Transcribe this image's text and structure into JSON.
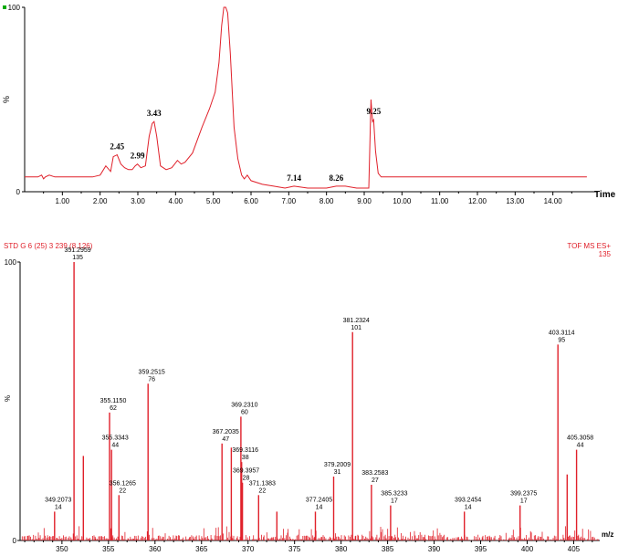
{
  "colors": {
    "trace": "#e0202a",
    "axis": "#000000",
    "background": "#ffffff"
  },
  "chart_data": [
    {
      "type": "line",
      "title": "",
      "xlabel": "Time",
      "ylabel": "%",
      "xlim": [
        0,
        15
      ],
      "ylim": [
        0,
        100
      ],
      "x_ticks": [
        1,
        2,
        3,
        4,
        5,
        6,
        7,
        8,
        9,
        10,
        11,
        12,
        13,
        14
      ],
      "x_tick_labels": [
        "1.00",
        "2.00",
        "3.00",
        "4.00",
        "5.00",
        "6.00",
        "7.00",
        "8.00",
        "9.00",
        "10.00",
        "11.00",
        "12.00",
        "13.00",
        "14.00"
      ],
      "y_ticks": [
        0,
        100
      ],
      "y_tick_labels": [
        "0",
        "100"
      ],
      "series": [
        {
          "x": [
            0,
            0.35,
            0.45,
            0.5,
            0.55,
            0.65,
            0.8,
            1.0,
            1.2,
            1.5,
            1.8,
            2.0,
            2.15,
            2.28,
            2.35,
            2.45,
            2.55,
            2.65,
            2.75,
            2.85,
            2.93,
            2.99,
            3.08,
            3.2,
            3.3,
            3.38,
            3.43,
            3.5,
            3.6,
            3.75,
            3.9,
            4.05,
            4.15,
            4.25,
            4.45,
            4.7,
            4.9,
            5.05,
            5.15,
            5.22,
            5.28,
            5.33,
            5.38,
            5.45,
            5.55,
            5.65,
            5.75,
            5.82,
            5.9,
            6.0,
            6.3,
            6.6,
            6.9,
            7.14,
            7.5,
            7.8,
            8.0,
            8.26,
            8.5,
            8.8,
            9.0,
            9.12,
            9.18,
            9.22,
            9.25,
            9.3,
            9.37,
            9.45,
            9.6,
            10,
            11,
            12,
            13,
            14,
            14.9
          ],
          "y": [
            8,
            8,
            9,
            7,
            8,
            9,
            8,
            8,
            8,
            8,
            8,
            9,
            14,
            11,
            19,
            20,
            15,
            13,
            12,
            12,
            14,
            15,
            13,
            14,
            30,
            37,
            38,
            30,
            14,
            12,
            13,
            17,
            15,
            16,
            21,
            35,
            45,
            54,
            70,
            90,
            100,
            100,
            97,
            75,
            35,
            18,
            9,
            7,
            9,
            6,
            4,
            3,
            2,
            3,
            2,
            2,
            2,
            3,
            3,
            2,
            2,
            2,
            50,
            38,
            39,
            22,
            10,
            8,
            8,
            8,
            8,
            8,
            8,
            8,
            8
          ]
        }
      ],
      "annotations": [
        {
          "x": 2.45,
          "y": 20,
          "text": "2.45"
        },
        {
          "x": 2.99,
          "y": 15,
          "text": "2.99"
        },
        {
          "x": 3.43,
          "y": 38,
          "text": "3.43"
        },
        {
          "x": 7.14,
          "y": 3,
          "text": "7.14"
        },
        {
          "x": 8.26,
          "y": 3,
          "text": "8.26"
        },
        {
          "x": 9.25,
          "y": 39,
          "text": "9.25"
        }
      ]
    },
    {
      "type": "bar",
      "title": "STD G 6 (25) 3 239 (8.126)",
      "subtitle": "TOF MS ES+",
      "scale_label": "135",
      "xlabel": "m/z",
      "ylabel": "%",
      "xlim": [
        345.5,
        407.8
      ],
      "ylim": [
        0,
        100
      ],
      "x_ticks": [
        350,
        355,
        360,
        365,
        370,
        375,
        380,
        385,
        390,
        395,
        400,
        405
      ],
      "x_tick_labels": [
        "350",
        "355",
        "360",
        "365",
        "370",
        "375",
        "380",
        "385",
        "390",
        "395",
        "400",
        "405"
      ],
      "y_ticks": [
        0,
        100
      ],
      "y_tick_labels": [
        "0",
        "100"
      ],
      "peaks": [
        {
          "mz": 349.2073,
          "intensity": 14,
          "mass": "349.2073",
          "count": "14",
          "labeled": true
        },
        {
          "mz": 351.2959,
          "intensity": 135,
          "mass": "351.2959",
          "count": "135",
          "labeled": true
        },
        {
          "mz": 352.3,
          "intensity": 41,
          "mass": "",
          "count": "",
          "labeled": false
        },
        {
          "mz": 355.115,
          "intensity": 62,
          "mass": "355.1150",
          "count": "62",
          "labeled": true
        },
        {
          "mz": 355.3343,
          "intensity": 44,
          "mass": "355.3343",
          "count": "44",
          "labeled": true
        },
        {
          "mz": 356.1265,
          "intensity": 22,
          "mass": "356.1265",
          "count": "22",
          "labeled": true
        },
        {
          "mz": 359.2515,
          "intensity": 76,
          "mass": "359.2515",
          "count": "76",
          "labeled": true
        },
        {
          "mz": 367.2035,
          "intensity": 47,
          "mass": "367.2035",
          "count": "47",
          "labeled": true
        },
        {
          "mz": 368.2,
          "intensity": 45,
          "mass": "",
          "count": "",
          "labeled": false
        },
        {
          "mz": 369.231,
          "intensity": 60,
          "mass": "369.2310",
          "count": "60",
          "labeled": true
        },
        {
          "mz": 369.3116,
          "intensity": 38,
          "mass": "369.3116",
          "count": "38",
          "labeled": true
        },
        {
          "mz": 369.3957,
          "intensity": 28,
          "mass": "369.3957",
          "count": "28",
          "labeled": true
        },
        {
          "mz": 371.1383,
          "intensity": 22,
          "mass": "371.1383",
          "count": "22",
          "labeled": true
        },
        {
          "mz": 373.1,
          "intensity": 14,
          "mass": "",
          "count": "",
          "labeled": false
        },
        {
          "mz": 377.2405,
          "intensity": 14,
          "mass": "377.2405",
          "count": "14",
          "labeled": true
        },
        {
          "mz": 379.2009,
          "intensity": 31,
          "mass": "379.2009",
          "count": "31",
          "labeled": true
        },
        {
          "mz": 381.2324,
          "intensity": 101,
          "mass": "381.2324",
          "count": "101",
          "labeled": true
        },
        {
          "mz": 383.2583,
          "intensity": 27,
          "mass": "383.2583",
          "count": "27",
          "labeled": true
        },
        {
          "mz": 385.3233,
          "intensity": 17,
          "mass": "385.3233",
          "count": "17",
          "labeled": true
        },
        {
          "mz": 393.2454,
          "intensity": 14,
          "mass": "393.2454",
          "count": "14",
          "labeled": true
        },
        {
          "mz": 399.2375,
          "intensity": 17,
          "mass": "399.2375",
          "count": "17",
          "labeled": true
        },
        {
          "mz": 403.3114,
          "intensity": 95,
          "mass": "403.3114",
          "count": "95",
          "labeled": true
        },
        {
          "mz": 404.3,
          "intensity": 32,
          "mass": "",
          "count": "",
          "labeled": false
        },
        {
          "mz": 405.3058,
          "intensity": 44,
          "mass": "405.3058",
          "count": "44",
          "labeled": true
        }
      ]
    }
  ]
}
